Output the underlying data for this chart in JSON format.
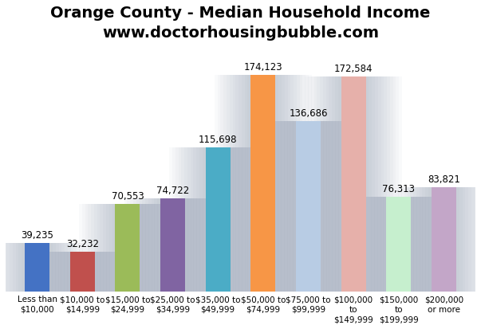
{
  "title_line1": "Orange County - Median Household Income",
  "title_line2": "www.doctorhousingbubble.com",
  "categories": [
    "Less than $10,000 to$15,000 to$25,000 to$35,000 to$50,000 to$75,000 to $100,000 $150,000 $200,000",
    "$10,000  $14,999   $24,999   $34,999   $49,999   $74,999   $99,999       to        to     or more",
    "                                                                        $149,999 $199,999"
  ],
  "cat_labels": [
    [
      "Less than",
      "$10,000"
    ],
    [
      "$10,000 to",
      "$14,999"
    ],
    [
      "$15,000 to",
      "$24,999"
    ],
    [
      "$25,000 to",
      "$34,999"
    ],
    [
      "$35,000 to",
      "$49,999"
    ],
    [
      "$50,000 to",
      "$74,999"
    ],
    [
      "$75,000 to",
      "$99,999"
    ],
    [
      "$100,000",
      "to",
      "$149,999"
    ],
    [
      "$150,000",
      "to",
      "$199,999"
    ],
    [
      "$200,000",
      "or more"
    ]
  ],
  "values": [
    39235,
    32232,
    70553,
    74722,
    115698,
    174123,
    136686,
    172584,
    76313,
    83821
  ],
  "bar_colors": [
    "#4472C4",
    "#C0504D",
    "#9BBB59",
    "#8064A2",
    "#4BACC6",
    "#F79646",
    "#B8CCE4",
    "#E6B0AA",
    "#C6EFCE",
    "#C3A6C8"
  ],
  "shadow_color": [
    0.53,
    0.58,
    0.67
  ],
  "background_color": "#FFFFFF",
  "ylim": [
    0,
    195000
  ],
  "title_fontsize": 14,
  "label_fontsize": 7.5,
  "value_fontsize": 8.5
}
